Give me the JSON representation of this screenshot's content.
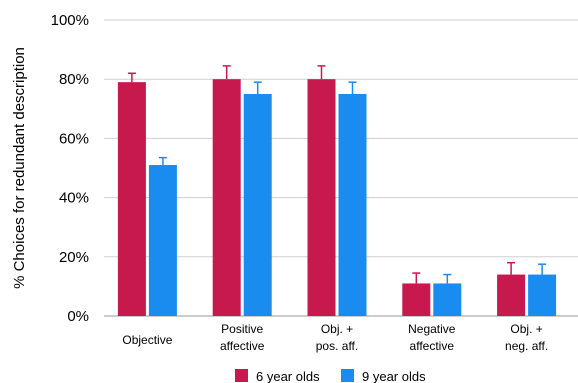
{
  "chart_data": {
    "type": "bar",
    "title": "",
    "xlabel": "",
    "ylabel": "% Choices for redundant description",
    "ylim": [
      0,
      100
    ],
    "yticks": [
      "0%",
      "20%",
      "40%",
      "60%",
      "80%",
      "100%"
    ],
    "ytick_values": [
      0,
      20,
      40,
      60,
      80,
      100
    ],
    "grid": true,
    "legend_position": "bottom",
    "categories": [
      [
        "Objective"
      ],
      [
        "Positive",
        "affective"
      ],
      [
        "Obj. +",
        "pos. aff."
      ],
      [
        "Negative",
        "affective"
      ],
      [
        "Obj. +",
        "neg. aff."
      ]
    ],
    "series": [
      {
        "name": "6 year olds",
        "color": "#c8194f",
        "values": [
          79,
          80,
          80,
          11,
          14
        ],
        "errors": [
          3,
          4.5,
          4.5,
          3.5,
          4
        ]
      },
      {
        "name": "9 year olds",
        "color": "#1a8cf0",
        "values": [
          51,
          75,
          75,
          11,
          14
        ],
        "errors": [
          2.5,
          4,
          4,
          3,
          3.5
        ]
      }
    ]
  }
}
